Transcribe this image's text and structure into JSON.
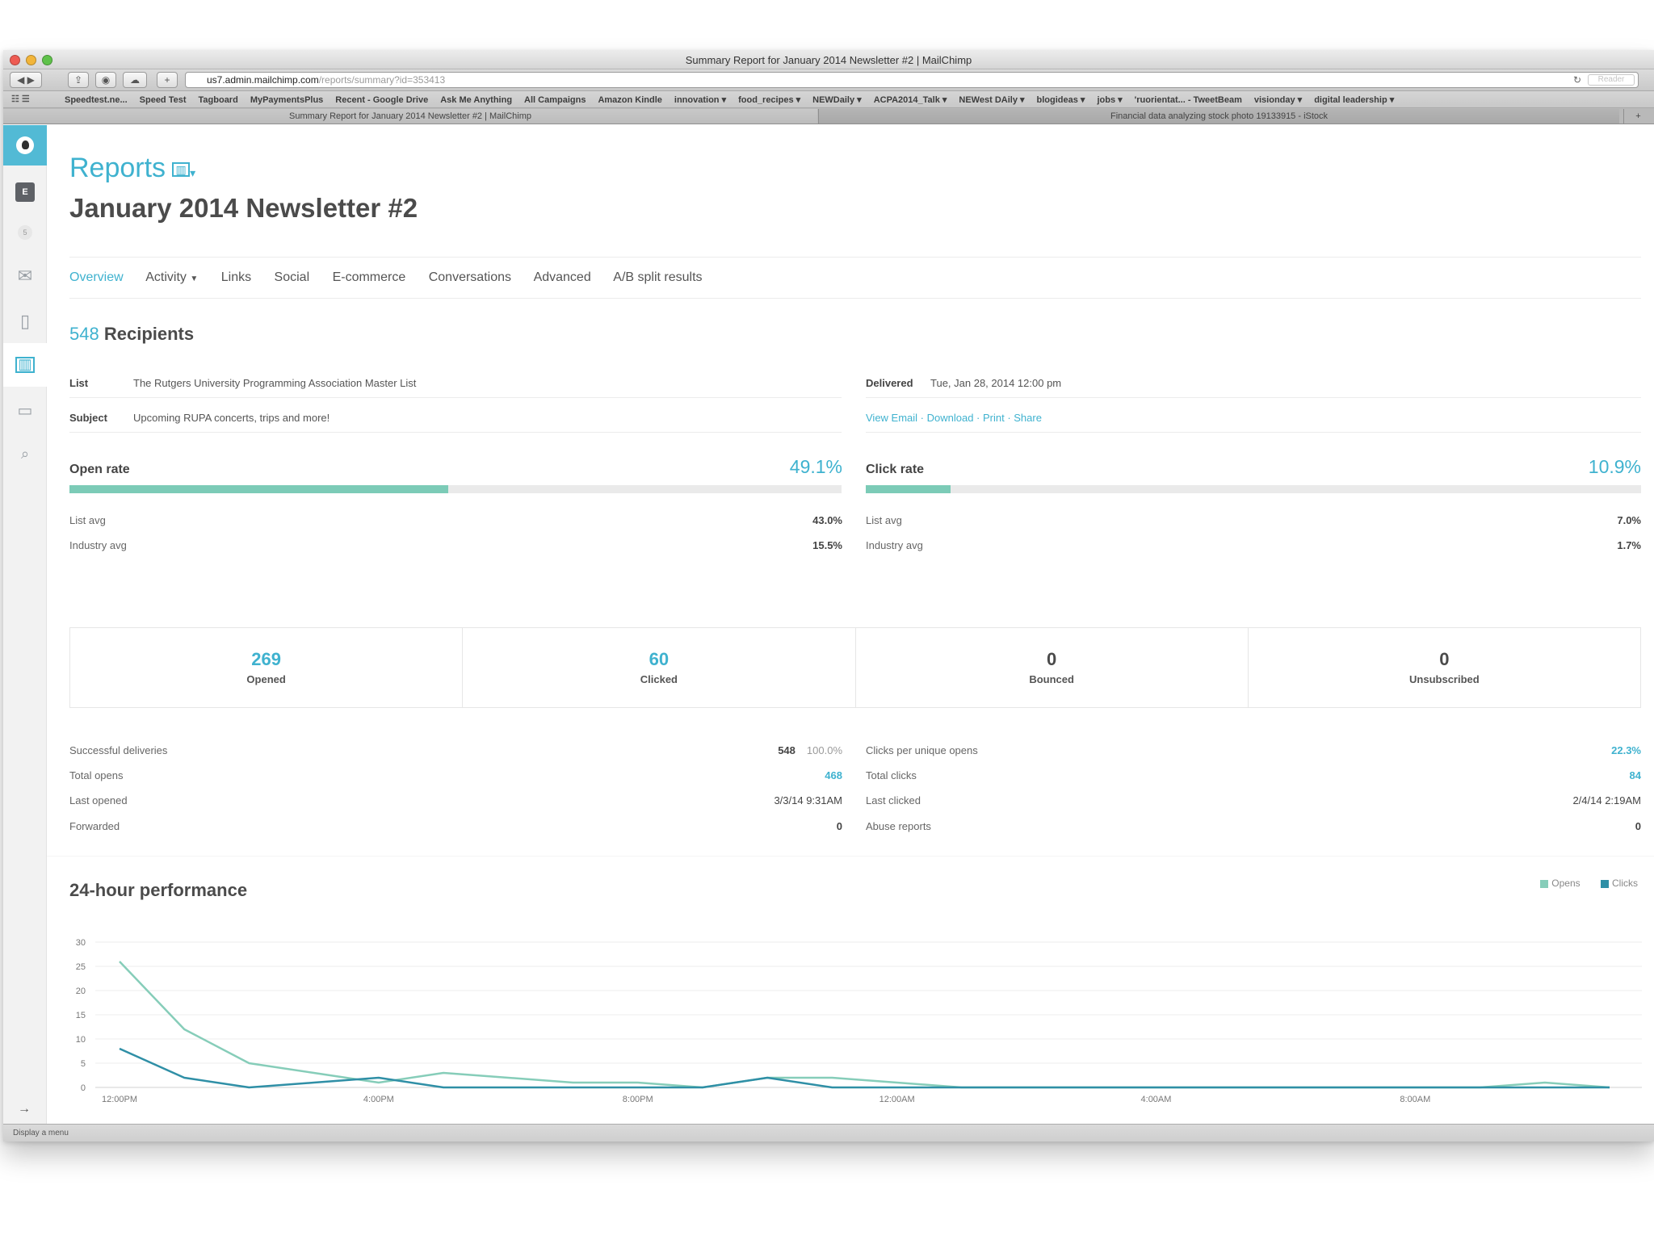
{
  "window": {
    "title": "Summary Report for January 2014 Newsletter #2 | MailChimp"
  },
  "address_bar": {
    "host": "us7.admin.mailchimp.com",
    "path": "/reports/summary?id=353413",
    "reader_label": "Reader"
  },
  "bookmarks": [
    "Speedtest.ne...",
    "Speed Test",
    "Tagboard",
    "MyPaymentsPlus",
    "Recent - Google Drive",
    "Ask Me Anything",
    "All Campaigns",
    "Amazon Kindle",
    "innovation ▾",
    "food_recipes ▾",
    "NEWDaily ▾",
    "ACPA2014_Talk ▾",
    "NEWest DAily ▾",
    "blogideas ▾",
    "jobs ▾",
    "'ruorientat... - TweetBeam",
    "visionday ▾",
    "digital leadership ▾"
  ],
  "tabs": {
    "tab1": "Summary Report for January 2014 Newsletter #2 | MailChimp",
    "tab2": "Financial data analyzing stock photo 19133915 - iStock",
    "add": "+"
  },
  "sidebar": {
    "badge_e": "E",
    "badge_count": "5"
  },
  "header": {
    "section": "Reports",
    "campaign": "January 2014 Newsletter #2"
  },
  "nav": [
    "Overview",
    "Activity",
    "Links",
    "Social",
    "E-commerce",
    "Conversations",
    "Advanced",
    "A/B split results"
  ],
  "recipients": {
    "count": "548",
    "label": "Recipients"
  },
  "info": {
    "list_label": "List",
    "list_value": "The Rutgers University Programming Association Master List",
    "subject_label": "Subject",
    "subject_value": "Upcoming RUPA concerts, trips and more!",
    "delivered_label": "Delivered",
    "delivered_value": "Tue, Jan 28, 2014 12:00 pm",
    "links": "View Email · Download · Print · Share"
  },
  "open_rate": {
    "label": "Open rate",
    "value": "49.1%",
    "fill": 0.491,
    "list_avg_label": "List avg",
    "list_avg": "43.0%",
    "industry_avg_label": "Industry avg",
    "industry_avg": "15.5%"
  },
  "click_rate": {
    "label": "Click rate",
    "value": "10.9%",
    "fill": 0.109,
    "list_avg_label": "List avg",
    "list_avg": "7.0%",
    "industry_avg_label": "Industry avg",
    "industry_avg": "1.7%"
  },
  "stats": [
    {
      "num": "269",
      "label": "Opened"
    },
    {
      "num": "60",
      "label": "Clicked"
    },
    {
      "num": "0",
      "label": "Bounced"
    },
    {
      "num": "0",
      "label": "Unsubscribed"
    }
  ],
  "details_left": [
    {
      "label": "Successful deliveries",
      "value": "548",
      "extra": "100.0%"
    },
    {
      "label": "Total opens",
      "value": "468"
    },
    {
      "label": "Last opened",
      "value": "3/3/14 9:31AM"
    },
    {
      "label": "Forwarded",
      "value": "0"
    }
  ],
  "details_right": [
    {
      "label": "Clicks per unique opens",
      "value": "22.3%"
    },
    {
      "label": "Total clicks",
      "value": "84"
    },
    {
      "label": "Last clicked",
      "value": "2/4/14 2:19AM"
    },
    {
      "label": "Abuse reports",
      "value": "0"
    }
  ],
  "performance": {
    "title": "24-hour performance"
  },
  "status_bar": "Display a menu",
  "colors": {
    "accent": "#3fb2cf",
    "opens": "#86cdb9",
    "clicks": "#2f8fa6"
  },
  "chart_data": {
    "type": "line",
    "x": [
      "12:00PM",
      "1:00PM",
      "2:00PM",
      "3:00PM",
      "4:00PM",
      "5:00PM",
      "6:00PM",
      "7:00PM",
      "8:00PM",
      "9:00PM",
      "10:00PM",
      "11:00PM",
      "12:00AM",
      "1:00AM",
      "2:00AM",
      "3:00AM",
      "4:00AM",
      "5:00AM",
      "6:00AM",
      "7:00AM",
      "8:00AM",
      "9:00AM",
      "10:00AM",
      "11:00AM"
    ],
    "x_tick_labels": [
      "12:00PM",
      "4:00PM",
      "8:00PM",
      "12:00AM",
      "4:00AM",
      "8:00AM"
    ],
    "y_ticks": [
      0,
      5,
      10,
      15,
      20,
      25,
      30
    ],
    "ylim": [
      0,
      30
    ],
    "legend_placement": "top-right",
    "series": [
      {
        "name": "Opens",
        "color": "#86cdb9",
        "values": [
          26,
          12,
          5,
          3,
          1,
          3,
          2,
          1,
          1,
          0,
          2,
          2,
          1,
          0,
          0,
          0,
          0,
          0,
          0,
          0,
          0,
          0,
          1,
          0
        ]
      },
      {
        "name": "Clicks",
        "color": "#2f8fa6",
        "values": [
          8,
          2,
          0,
          1,
          2,
          0,
          0,
          0,
          0,
          0,
          2,
          0,
          0,
          0,
          0,
          0,
          0,
          0,
          0,
          0,
          0,
          0,
          0,
          0
        ]
      }
    ]
  }
}
